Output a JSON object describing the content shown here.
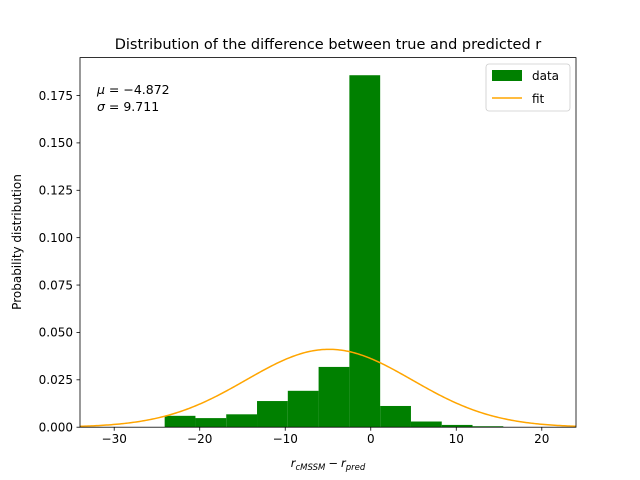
{
  "chart_data": {
    "type": "bar",
    "title": "Distribution of the difference between true and predicted r",
    "xlabel": {
      "base": "r",
      "sub1": "cMSSM",
      "minus": "−",
      "base2": "r",
      "sub2": "pred"
    },
    "ylabel": "Probability distribution",
    "xlim": [
      -34,
      24
    ],
    "ylim": [
      0,
      0.195
    ],
    "xticks": [
      -30,
      -20,
      -10,
      0,
      10,
      20
    ],
    "xtick_labels": [
      "−30",
      "−20",
      "−10",
      "0",
      "10",
      "20"
    ],
    "yticks": [
      0.0,
      0.025,
      0.05,
      0.075,
      0.1,
      0.125,
      0.15,
      0.175
    ],
    "ytick_labels": [
      "0.000",
      "0.025",
      "0.050",
      "0.075",
      "0.100",
      "0.125",
      "0.150",
      "0.175"
    ],
    "grid": false,
    "legend_position": "top-right",
    "annotations": [
      {
        "sym": "μ",
        "eq": " = −4.872"
      },
      {
        "sym": "σ",
        "eq": " = 9.711"
      }
    ],
    "histogram": {
      "name": "data",
      "color": "#008000",
      "bin_edges": [
        -24.1,
        -20.5,
        -16.9,
        -13.3,
        -9.7,
        -6.1,
        -2.5,
        1.1,
        4.7,
        8.3,
        11.9,
        15.5
      ],
      "values": [
        0.006,
        0.0048,
        0.0068,
        0.0138,
        0.0192,
        0.0318,
        0.1857,
        0.0112,
        0.003,
        0.0012,
        0.0005
      ]
    },
    "fit": {
      "name": "fit",
      "color": "#ffa500",
      "mu": -4.872,
      "sigma": 9.711
    }
  }
}
